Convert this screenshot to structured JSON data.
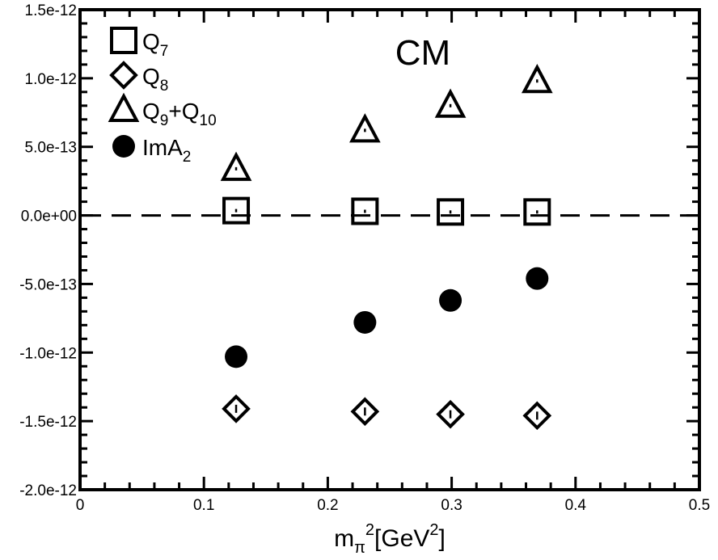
{
  "chart_data": {
    "type": "scatter",
    "title": "CM",
    "xlabel": {
      "main": "m",
      "sub": "π",
      "sup": "2",
      "unit_main": "[GeV",
      "unit_sup": "2",
      "unit_end": "]"
    },
    "ylabel": "",
    "xlim": [
      0,
      0.5
    ],
    "ylim": [
      -2e-12,
      1.5e-12
    ],
    "x_ticks": [
      {
        "value": 0,
        "label": "0"
      },
      {
        "value": 0.1,
        "label": "0.1"
      },
      {
        "value": 0.2,
        "label": "0.2"
      },
      {
        "value": 0.3,
        "label": "0.3"
      },
      {
        "value": 0.4,
        "label": "0.4"
      },
      {
        "value": 0.5,
        "label": "0.5"
      }
    ],
    "y_ticks": [
      {
        "value": 1.5e-12,
        "label": "1.5e-12"
      },
      {
        "value": 1e-12,
        "label": "1.0e-12"
      },
      {
        "value": 5e-13,
        "label": "5.0e-13"
      },
      {
        "value": 0,
        "label": "0.0e+00"
      },
      {
        "value": -5e-13,
        "label": "-5.0e-13"
      },
      {
        "value": -1e-12,
        "label": "-1.0e-12"
      },
      {
        "value": -1.5e-12,
        "label": "-1.5e-12"
      },
      {
        "value": -2e-12,
        "label": "-2.0e-12"
      }
    ],
    "reference_line": {
      "y": 0,
      "style": "dashed"
    },
    "grid": false,
    "legend_position": "top-left",
    "series": [
      {
        "name": "Q7",
        "label_main": "Q",
        "label_sub": "7",
        "label_extra": "",
        "label_extra_sub": "",
        "marker": "square-open",
        "x": [
          0.126,
          0.23,
          0.299,
          0.369
        ],
        "y": [
          3.5e-14,
          3e-14,
          2.5e-14,
          2.5e-14
        ]
      },
      {
        "name": "Q8",
        "label_main": "Q",
        "label_sub": "8",
        "label_extra": "",
        "label_extra_sub": "",
        "marker": "diamond-open",
        "x": [
          0.126,
          0.23,
          0.299,
          0.369
        ],
        "y": [
          -1.41e-12,
          -1.43e-12,
          -1.45e-12,
          -1.46e-12
        ]
      },
      {
        "name": "Q9+Q10",
        "label_main": "Q",
        "label_sub": "9",
        "label_extra": "+Q",
        "label_extra_sub": "10",
        "marker": "triangle-open",
        "x": [
          0.126,
          0.23,
          0.299,
          0.369
        ],
        "y": [
          3.4e-13,
          6.2e-13,
          8e-13,
          9.8e-13
        ]
      },
      {
        "name": "ImA2",
        "label_main": "ImA",
        "label_sub": "2",
        "label_extra": "",
        "label_extra_sub": "",
        "marker": "circle-filled",
        "x": [
          0.126,
          0.23,
          0.299,
          0.369
        ],
        "y": [
          -1.03e-12,
          -7.8e-13,
          -6.2e-13,
          -4.6e-13
        ]
      }
    ]
  }
}
